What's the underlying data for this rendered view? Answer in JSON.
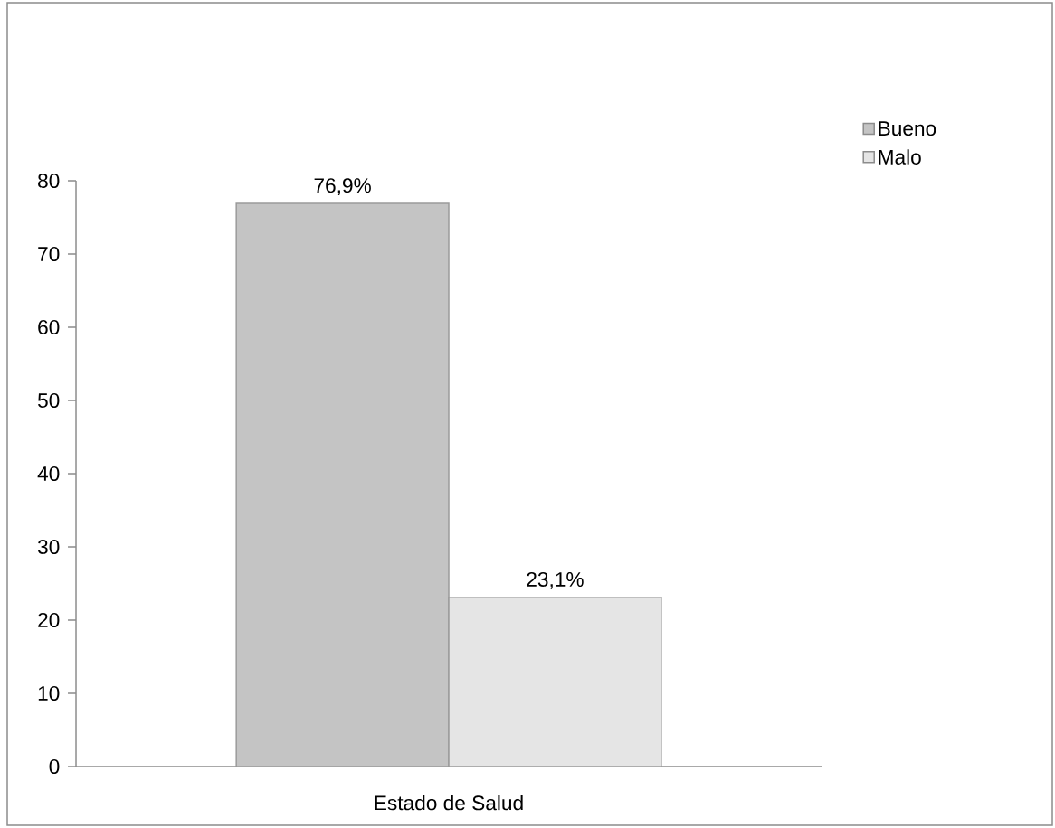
{
  "chart_data": {
    "type": "bar",
    "categories": [
      "Estado de Salud"
    ],
    "series": [
      {
        "name": "Bueno",
        "color": "#c4c4c4",
        "values": [
          76.9
        ],
        "value_labels": [
          "76,9%"
        ]
      },
      {
        "name": "Malo",
        "color": "#e5e5e5",
        "values": [
          23.1
        ],
        "value_labels": [
          "23,1%"
        ]
      }
    ],
    "ylim": [
      0,
      80
    ],
    "yticks": [
      0,
      10,
      20,
      30,
      40,
      50,
      60,
      70,
      80
    ],
    "legend": "top right"
  }
}
